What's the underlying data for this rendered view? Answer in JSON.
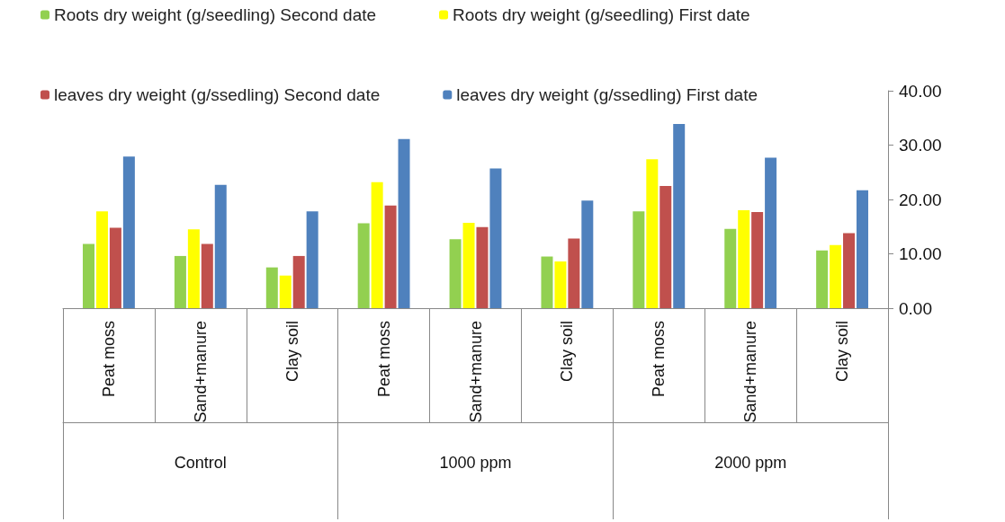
{
  "chart_data": {
    "type": "bar",
    "categories": [
      "Peat moss",
      "Sand+manure",
      "Clay soil",
      "Peat moss",
      "Sand+manure",
      "Clay soil",
      "Peat moss",
      "Sand+manure",
      "Clay soil"
    ],
    "annotations": [
      "Control",
      "1000 ppm",
      "2000 ppm"
    ],
    "series": [
      {
        "name": "Roots dry weight (g/seedling) Second date",
        "color": "#92d050",
        "values": [
          11.8,
          9.6,
          7.5,
          15.6,
          12.7,
          9.5,
          17.8,
          14.6,
          10.6
        ]
      },
      {
        "name": "Roots dry weight (g/seedling) First date",
        "color": "#ffff00",
        "values": [
          17.8,
          14.5,
          6.0,
          23.2,
          15.7,
          8.6,
          27.4,
          18.0,
          11.6
        ]
      },
      {
        "name": "leaves dry weight (g/ssedling) Second date",
        "color": "#c0504d",
        "values": [
          14.8,
          11.8,
          9.6,
          18.9,
          14.9,
          12.8,
          22.5,
          17.7,
          13.8
        ]
      },
      {
        "name": "leaves dry weight (g/ssedling) First date",
        "color": "#4f81bd",
        "values": [
          27.9,
          22.7,
          17.8,
          31.1,
          25.7,
          19.8,
          33.9,
          27.7,
          21.7
        ]
      }
    ],
    "ylim": [
      0,
      40
    ],
    "yticks": [
      {
        "value": 0,
        "label": "0.00"
      },
      {
        "value": 10,
        "label": "10.00"
      },
      {
        "value": 20,
        "label": "20.00"
      },
      {
        "value": 30,
        "label": "30.00"
      },
      {
        "value": 40,
        "label": "40.00"
      }
    ],
    "grid": false,
    "legend": "top"
  }
}
